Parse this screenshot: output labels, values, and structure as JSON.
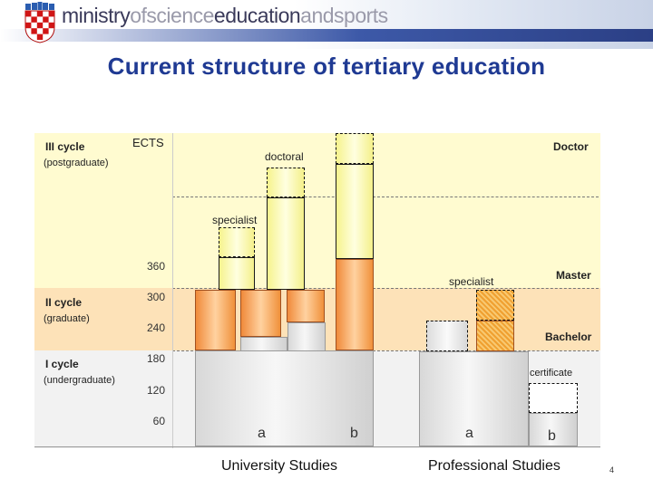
{
  "header": {
    "logo_parts": [
      "ministry",
      "ofscience",
      "education",
      "andsports"
    ]
  },
  "title": "Current structure of tertiary education",
  "cycles": {
    "third": {
      "name": "III cycle",
      "sub": "(postgraduate)"
    },
    "second": {
      "name": "II cycle",
      "sub": "(graduate)"
    },
    "first": {
      "name": "I cycle",
      "sub": "(undergraduate)"
    }
  },
  "axis": {
    "label": "ECTS",
    "ticks": [
      "360",
      "300",
      "240",
      "180",
      "120",
      "60"
    ]
  },
  "labels": {
    "doctoral": "doctoral",
    "specialist_top": "specialist",
    "doctor": "Doctor",
    "specialist_mid": "specialist",
    "master": "Master",
    "bachelor": "Bachelor",
    "certificate": "certificate"
  },
  "bars": {
    "uni_a": "a",
    "uni_b": "b",
    "prof_a": "a",
    "prof_b": "b"
  },
  "groups": {
    "university": "University Studies",
    "professional": "Professional Studies"
  },
  "page_number": "4",
  "colors": {
    "title": "#1f3a93",
    "band_postgraduate": "#fffbd0",
    "band_graduate": "#fde2b8",
    "band_undergraduate": "#f2f2f2"
  }
}
